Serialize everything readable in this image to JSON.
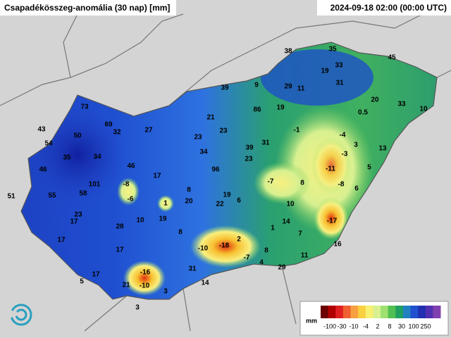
{
  "header": {
    "title": "Csapadékösszeg-anomália (30 nap) [mm]",
    "timestamp": "2024-09-18 02:00 (00:00 UTC)"
  },
  "stations": [
    73,
    43,
    54,
    50,
    69,
    32,
    27,
    35,
    34,
    46,
    46,
    17,
    101,
    58,
    -8,
    -6,
    51,
    55,
    23,
    17,
    28,
    10,
    19,
    1,
    8,
    20,
    19,
    22,
    6,
    17,
    17,
    8,
    -10,
    -18,
    2,
    8,
    -7,
    4,
    31,
    29,
    11,
    16,
    17,
    5,
    -16,
    21,
    -10,
    3,
    14,
    3,
    39,
    9,
    29,
    11,
    38,
    35,
    19,
    33,
    45,
    31,
    20,
    33,
    10,
    0.5,
    21,
    86,
    19,
    23,
    23,
    -1,
    34,
    39,
    31,
    23,
    -4,
    3,
    -3,
    13,
    96,
    -11,
    5,
    -7,
    8,
    -8,
    6,
    10,
    14,
    1,
    7,
    -17
  ],
  "legend": {
    "unit": "mm",
    "ticks": [
      -100,
      -30,
      -10,
      -4,
      2,
      8,
      30,
      100,
      250
    ],
    "colors": [
      "#6b0000",
      "#b00000",
      "#e02020",
      "#f06030",
      "#f8a040",
      "#f8d040",
      "#f8f070",
      "#d8f090",
      "#a0e070",
      "#50c050",
      "#20a060",
      "#2080c0",
      "#2050d0",
      "#2030b0",
      "#5030b0",
      "#8040b0"
    ]
  }
}
